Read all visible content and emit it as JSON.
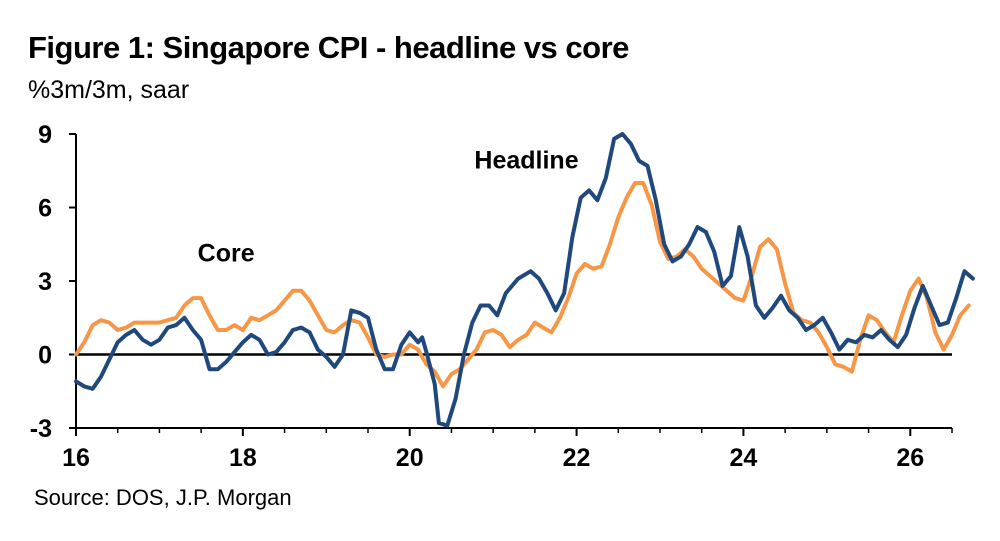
{
  "title": "Figure 1: Singapore CPI - headline vs core",
  "subtitle": "%3m/3m, saar",
  "source": "Source: DOS, J.P. Morgan",
  "chart_data": {
    "type": "line",
    "xlim": [
      16,
      26.5
    ],
    "ylim": [
      -3,
      9
    ],
    "x_ticks": [
      16,
      18,
      20,
      22,
      24,
      26
    ],
    "x_tick_labels": [
      "16",
      "18",
      "20",
      "22",
      "24",
      "26"
    ],
    "y_ticks": [
      -3,
      0,
      3,
      6,
      9
    ],
    "y_tick_labels": [
      "-3",
      "0",
      "3",
      "6",
      "9"
    ],
    "grid": false,
    "annotations": [
      {
        "text": "Headline",
        "x": 21.4,
        "y": 7.6
      },
      {
        "text": "Core",
        "x": 17.8,
        "y": 3.8
      }
    ],
    "series": [
      {
        "name": "Headline",
        "color": "#1f497d",
        "points": [
          [
            16.0,
            -1.1
          ],
          [
            16.1,
            -1.3
          ],
          [
            16.2,
            -1.4
          ],
          [
            16.3,
            -0.9
          ],
          [
            16.4,
            -0.2
          ],
          [
            16.5,
            0.5
          ],
          [
            16.6,
            0.8
          ],
          [
            16.7,
            1.0
          ],
          [
            16.8,
            0.6
          ],
          [
            16.9,
            0.4
          ],
          [
            17.0,
            0.6
          ],
          [
            17.1,
            1.1
          ],
          [
            17.2,
            1.2
          ],
          [
            17.3,
            1.5
          ],
          [
            17.4,
            1.0
          ],
          [
            17.5,
            0.6
          ],
          [
            17.6,
            -0.6
          ],
          [
            17.7,
            -0.6
          ],
          [
            17.8,
            -0.3
          ],
          [
            17.9,
            0.1
          ],
          [
            18.0,
            0.5
          ],
          [
            18.1,
            0.8
          ],
          [
            18.2,
            0.6
          ],
          [
            18.3,
            0.0
          ],
          [
            18.4,
            0.1
          ],
          [
            18.5,
            0.5
          ],
          [
            18.6,
            1.0
          ],
          [
            18.7,
            1.1
          ],
          [
            18.8,
            0.9
          ],
          [
            18.9,
            0.2
          ],
          [
            19.0,
            -0.1
          ],
          [
            19.1,
            -0.5
          ],
          [
            19.2,
            0.0
          ],
          [
            19.3,
            1.8
          ],
          [
            19.4,
            1.7
          ],
          [
            19.5,
            1.5
          ],
          [
            19.6,
            0.2
          ],
          [
            19.7,
            -0.6
          ],
          [
            19.8,
            -0.6
          ],
          [
            19.9,
            0.4
          ],
          [
            20.0,
            0.9
          ],
          [
            20.1,
            0.5
          ],
          [
            20.15,
            0.7
          ],
          [
            20.2,
            0.1
          ],
          [
            20.3,
            -1.2
          ],
          [
            20.35,
            -2.8
          ],
          [
            20.45,
            -2.9
          ],
          [
            20.55,
            -1.8
          ],
          [
            20.65,
            0.0
          ],
          [
            20.75,
            1.3
          ],
          [
            20.85,
            2.0
          ],
          [
            20.95,
            2.0
          ],
          [
            21.05,
            1.6
          ],
          [
            21.15,
            2.5
          ],
          [
            21.3,
            3.1
          ],
          [
            21.45,
            3.4
          ],
          [
            21.55,
            3.1
          ],
          [
            21.65,
            2.5
          ],
          [
            21.75,
            1.8
          ],
          [
            21.85,
            2.5
          ],
          [
            21.95,
            4.8
          ],
          [
            22.05,
            6.4
          ],
          [
            22.15,
            6.7
          ],
          [
            22.25,
            6.3
          ],
          [
            22.35,
            7.2
          ],
          [
            22.45,
            8.8
          ],
          [
            22.55,
            9.0
          ],
          [
            22.65,
            8.6
          ],
          [
            22.75,
            7.9
          ],
          [
            22.85,
            7.7
          ],
          [
            22.95,
            6.3
          ],
          [
            23.05,
            4.5
          ],
          [
            23.15,
            3.8
          ],
          [
            23.25,
            4.0
          ],
          [
            23.35,
            4.5
          ],
          [
            23.45,
            5.2
          ],
          [
            23.55,
            5.0
          ],
          [
            23.65,
            4.2
          ],
          [
            23.75,
            2.8
          ],
          [
            23.85,
            3.2
          ],
          [
            23.95,
            5.2
          ],
          [
            24.05,
            4.0
          ],
          [
            24.15,
            2.0
          ],
          [
            24.25,
            1.5
          ],
          [
            24.35,
            1.9
          ],
          [
            24.45,
            2.4
          ],
          [
            24.55,
            1.8
          ],
          [
            24.65,
            1.5
          ],
          [
            24.75,
            1.0
          ],
          [
            24.85,
            1.2
          ],
          [
            24.95,
            1.5
          ],
          [
            25.05,
            0.9
          ],
          [
            25.15,
            0.2
          ],
          [
            25.25,
            0.6
          ],
          [
            25.35,
            0.5
          ],
          [
            25.45,
            0.8
          ],
          [
            25.55,
            0.7
          ],
          [
            25.65,
            1.0
          ],
          [
            25.75,
            0.6
          ],
          [
            25.85,
            0.3
          ],
          [
            25.95,
            0.8
          ],
          [
            26.05,
            1.9
          ],
          [
            26.15,
            2.8
          ],
          [
            26.25,
            2.0
          ],
          [
            26.35,
            1.2
          ],
          [
            26.45,
            1.3
          ],
          [
            26.55,
            2.3
          ],
          [
            26.65,
            3.4
          ],
          [
            26.75,
            3.1
          ]
        ]
      },
      {
        "name": "Core",
        "color": "#f79646",
        "points": [
          [
            16.0,
            0.0
          ],
          [
            16.1,
            0.5
          ],
          [
            16.2,
            1.2
          ],
          [
            16.3,
            1.4
          ],
          [
            16.4,
            1.3
          ],
          [
            16.5,
            1.0
          ],
          [
            16.6,
            1.1
          ],
          [
            16.7,
            1.3
          ],
          [
            16.8,
            1.3
          ],
          [
            16.9,
            1.3
          ],
          [
            17.0,
            1.3
          ],
          [
            17.1,
            1.4
          ],
          [
            17.2,
            1.5
          ],
          [
            17.3,
            2.0
          ],
          [
            17.4,
            2.3
          ],
          [
            17.5,
            2.3
          ],
          [
            17.6,
            1.6
          ],
          [
            17.7,
            1.0
          ],
          [
            17.8,
            1.0
          ],
          [
            17.9,
            1.2
          ],
          [
            18.0,
            1.0
          ],
          [
            18.1,
            1.5
          ],
          [
            18.2,
            1.4
          ],
          [
            18.3,
            1.6
          ],
          [
            18.4,
            1.8
          ],
          [
            18.5,
            2.2
          ],
          [
            18.6,
            2.6
          ],
          [
            18.7,
            2.6
          ],
          [
            18.8,
            2.2
          ],
          [
            18.9,
            1.6
          ],
          [
            19.0,
            1.0
          ],
          [
            19.1,
            0.9
          ],
          [
            19.2,
            1.2
          ],
          [
            19.3,
            1.4
          ],
          [
            19.4,
            1.3
          ],
          [
            19.5,
            0.7
          ],
          [
            19.6,
            0.0
          ],
          [
            19.7,
            -0.1
          ],
          [
            19.8,
            0.0
          ],
          [
            19.9,
            0.0
          ],
          [
            20.0,
            0.4
          ],
          [
            20.1,
            0.2
          ],
          [
            20.2,
            -0.4
          ],
          [
            20.3,
            -0.7
          ],
          [
            20.4,
            -1.3
          ],
          [
            20.5,
            -0.8
          ],
          [
            20.6,
            -0.6
          ],
          [
            20.7,
            -0.2
          ],
          [
            20.8,
            0.2
          ],
          [
            20.9,
            0.9
          ],
          [
            21.0,
            1.0
          ],
          [
            21.1,
            0.8
          ],
          [
            21.2,
            0.3
          ],
          [
            21.3,
            0.6
          ],
          [
            21.4,
            0.8
          ],
          [
            21.5,
            1.3
          ],
          [
            21.6,
            1.1
          ],
          [
            21.7,
            0.9
          ],
          [
            21.8,
            1.5
          ],
          [
            21.9,
            2.3
          ],
          [
            22.0,
            3.3
          ],
          [
            22.1,
            3.7
          ],
          [
            22.2,
            3.5
          ],
          [
            22.3,
            3.6
          ],
          [
            22.4,
            4.5
          ],
          [
            22.5,
            5.6
          ],
          [
            22.6,
            6.4
          ],
          [
            22.7,
            7.0
          ],
          [
            22.8,
            7.0
          ],
          [
            22.9,
            6.1
          ],
          [
            23.0,
            4.6
          ],
          [
            23.1,
            3.9
          ],
          [
            23.2,
            4.0
          ],
          [
            23.3,
            4.3
          ],
          [
            23.4,
            4.0
          ],
          [
            23.5,
            3.5
          ],
          [
            23.6,
            3.2
          ],
          [
            23.7,
            2.9
          ],
          [
            23.8,
            2.6
          ],
          [
            23.9,
            2.3
          ],
          [
            24.0,
            2.2
          ],
          [
            24.1,
            3.2
          ],
          [
            24.2,
            4.4
          ],
          [
            24.3,
            4.7
          ],
          [
            24.4,
            4.3
          ],
          [
            24.5,
            2.9
          ],
          [
            24.6,
            1.7
          ],
          [
            24.7,
            1.4
          ],
          [
            24.8,
            1.3
          ],
          [
            24.9,
            0.9
          ],
          [
            25.0,
            0.3
          ],
          [
            25.1,
            -0.4
          ],
          [
            25.2,
            -0.5
          ],
          [
            25.3,
            -0.7
          ],
          [
            25.4,
            0.6
          ],
          [
            25.5,
            1.6
          ],
          [
            25.6,
            1.4
          ],
          [
            25.7,
            0.9
          ],
          [
            25.8,
            0.5
          ],
          [
            25.9,
            1.6
          ],
          [
            26.0,
            2.6
          ],
          [
            26.1,
            3.1
          ],
          [
            26.2,
            2.3
          ],
          [
            26.3,
            0.9
          ],
          [
            26.4,
            0.2
          ],
          [
            26.5,
            0.8
          ],
          [
            26.6,
            1.6
          ],
          [
            26.7,
            2.0
          ]
        ]
      }
    ]
  }
}
